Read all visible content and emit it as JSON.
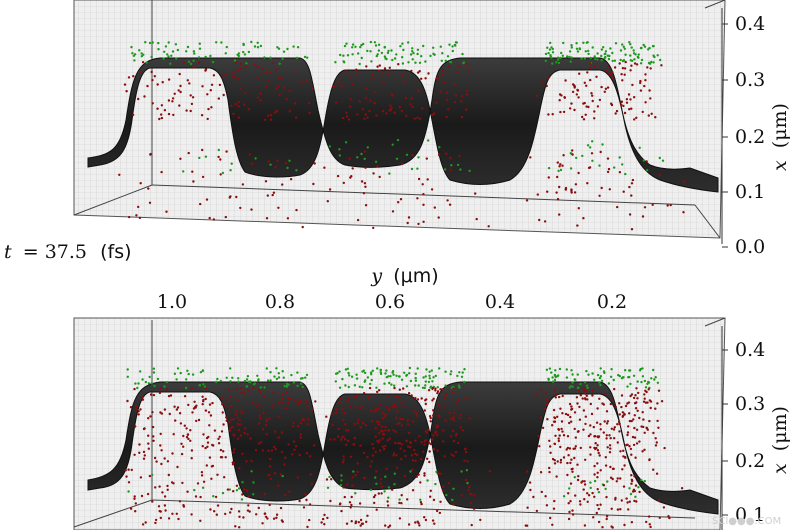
{
  "chart_data": [
    {
      "type": "scatter",
      "panel": "top",
      "surface_profile": [
        0.13,
        0.34,
        0.34,
        0.14,
        0.34,
        0.34,
        0.14,
        0.34,
        0.34,
        0.13
      ],
      "particle_colors": {
        "upper": "#1d9a1d",
        "lower": "#8b0d0d"
      },
      "x_axis": {
        "label_symbol": "x",
        "label_unit": "(μm)",
        "ticks": [
          "0.4",
          "0.3",
          "0.2",
          "0.1",
          "0.0"
        ],
        "values": [
          0.4,
          0.3,
          0.2,
          0.1,
          0.0
        ]
      },
      "time_label": {
        "var": "t",
        "eq": "= 37.5",
        "unit": "(fs)"
      }
    },
    {
      "type": "scatter",
      "panel": "bottom",
      "surface_profile": [
        0.13,
        0.34,
        0.34,
        0.14,
        0.34,
        0.34,
        0.14,
        0.34,
        0.34,
        0.13
      ],
      "particle_colors": {
        "upper": "#1d9a1d",
        "lower": "#8b0d0d"
      },
      "x_axis": {
        "label_symbol": "x",
        "label_unit": "(μm)",
        "ticks": [
          "0.4",
          "0.3",
          "0.2",
          "0.1"
        ],
        "values": [
          0.4,
          0.3,
          0.2,
          0.1
        ]
      },
      "y_axis": {
        "label_symbol": "y",
        "label_unit": "(μm)",
        "ticks": [
          "1.0",
          "0.8",
          "0.6",
          "0.4",
          "0.2"
        ],
        "values": [
          1.0,
          0.8,
          0.6,
          0.4,
          0.2
        ]
      }
    }
  ],
  "watermark": "SCI●●●.COM"
}
